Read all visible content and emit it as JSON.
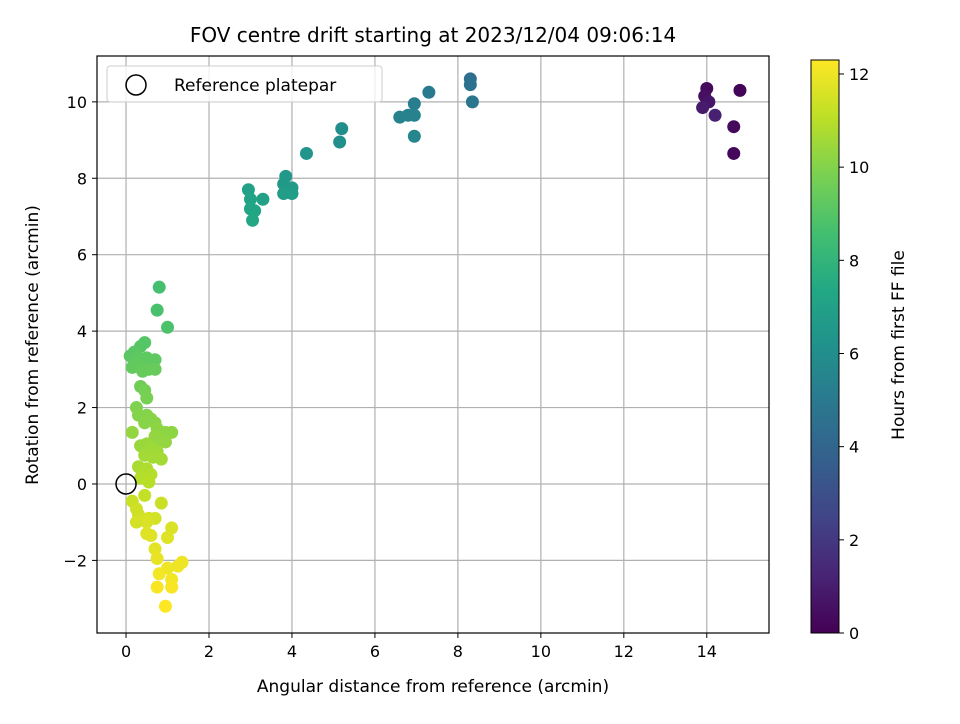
{
  "chart_data": {
    "type": "scatter",
    "title": "FOV centre drift starting at 2023/12/04 09:06:14",
    "xlabel": "Angular distance from reference (arcmin)",
    "ylabel": "Rotation from reference (arcmin)",
    "xlim": [
      -0.7,
      15.5
    ],
    "ylim": [
      -3.9,
      11.2
    ],
    "x_ticks": [
      0,
      2,
      4,
      6,
      8,
      10,
      12,
      14
    ],
    "y_ticks": [
      -2,
      0,
      2,
      4,
      6,
      8,
      10
    ],
    "grid": true,
    "legend": {
      "position": "top-left",
      "entries": [
        "Reference platepar"
      ]
    },
    "reference_point": {
      "x": 0,
      "y": 0
    },
    "colorbar": {
      "label": "Hours from first FF file",
      "min": 0,
      "max": 12.3,
      "ticks": [
        0,
        2,
        4,
        6,
        8,
        10,
        12
      ],
      "colormap": "viridis"
    },
    "series": [
      {
        "x": 14.8,
        "y": 10.3,
        "t": 0.1
      },
      {
        "x": 14.0,
        "y": 10.35,
        "t": 0.3
      },
      {
        "x": 13.95,
        "y": 10.15,
        "t": 0.5
      },
      {
        "x": 14.05,
        "y": 10.0,
        "t": 0.7
      },
      {
        "x": 13.9,
        "y": 9.85,
        "t": 0.9
      },
      {
        "x": 14.2,
        "y": 9.65,
        "t": 1.1
      },
      {
        "x": 14.65,
        "y": 9.35,
        "t": 0.3
      },
      {
        "x": 14.65,
        "y": 8.65,
        "t": 0.2
      },
      {
        "x": 8.3,
        "y": 10.6,
        "t": 4.5
      },
      {
        "x": 8.3,
        "y": 10.45,
        "t": 4.6
      },
      {
        "x": 8.35,
        "y": 10.0,
        "t": 4.8
      },
      {
        "x": 7.3,
        "y": 10.25,
        "t": 5.0
      },
      {
        "x": 6.95,
        "y": 9.95,
        "t": 5.2
      },
      {
        "x": 6.6,
        "y": 9.6,
        "t": 5.4
      },
      {
        "x": 6.8,
        "y": 9.65,
        "t": 5.3
      },
      {
        "x": 6.95,
        "y": 9.65,
        "t": 5.4
      },
      {
        "x": 6.95,
        "y": 9.1,
        "t": 5.6
      },
      {
        "x": 5.2,
        "y": 9.3,
        "t": 6.0
      },
      {
        "x": 5.15,
        "y": 8.95,
        "t": 6.1
      },
      {
        "x": 4.35,
        "y": 8.65,
        "t": 6.3
      },
      {
        "x": 3.85,
        "y": 8.05,
        "t": 6.5
      },
      {
        "x": 3.8,
        "y": 7.85,
        "t": 6.6
      },
      {
        "x": 3.9,
        "y": 7.7,
        "t": 6.7
      },
      {
        "x": 4.0,
        "y": 7.75,
        "t": 6.7
      },
      {
        "x": 3.8,
        "y": 7.6,
        "t": 6.8
      },
      {
        "x": 4.0,
        "y": 7.6,
        "t": 6.8
      },
      {
        "x": 2.95,
        "y": 7.7,
        "t": 7.0
      },
      {
        "x": 3.0,
        "y": 7.45,
        "t": 7.1
      },
      {
        "x": 3.3,
        "y": 7.45,
        "t": 7.0
      },
      {
        "x": 3.0,
        "y": 7.2,
        "t": 7.2
      },
      {
        "x": 3.1,
        "y": 7.15,
        "t": 7.2
      },
      {
        "x": 3.05,
        "y": 6.9,
        "t": 7.3
      },
      {
        "x": 0.8,
        "y": 5.15,
        "t": 8.6
      },
      {
        "x": 0.75,
        "y": 4.55,
        "t": 8.7
      },
      {
        "x": 1.0,
        "y": 4.1,
        "t": 8.8
      },
      {
        "x": 0.45,
        "y": 3.7,
        "t": 9.0
      },
      {
        "x": 0.35,
        "y": 3.6,
        "t": 9.0
      },
      {
        "x": 0.2,
        "y": 3.45,
        "t": 9.1
      },
      {
        "x": 0.1,
        "y": 3.35,
        "t": 9.1
      },
      {
        "x": 0.3,
        "y": 3.3,
        "t": 9.2
      },
      {
        "x": 0.5,
        "y": 3.3,
        "t": 9.2
      },
      {
        "x": 0.7,
        "y": 3.25,
        "t": 9.2
      },
      {
        "x": 0.2,
        "y": 3.15,
        "t": 9.3
      },
      {
        "x": 0.4,
        "y": 3.1,
        "t": 9.3
      },
      {
        "x": 0.15,
        "y": 3.05,
        "t": 9.3
      },
      {
        "x": 0.55,
        "y": 3.0,
        "t": 9.4
      },
      {
        "x": 0.7,
        "y": 3.0,
        "t": 9.4
      },
      {
        "x": 0.4,
        "y": 2.95,
        "t": 9.4
      },
      {
        "x": 0.35,
        "y": 2.55,
        "t": 9.6
      },
      {
        "x": 0.45,
        "y": 2.45,
        "t": 9.7
      },
      {
        "x": 0.5,
        "y": 2.25,
        "t": 9.8
      },
      {
        "x": 0.25,
        "y": 2.0,
        "t": 9.9
      },
      {
        "x": 0.3,
        "y": 1.8,
        "t": 10.0
      },
      {
        "x": 0.5,
        "y": 1.8,
        "t": 10.0
      },
      {
        "x": 0.6,
        "y": 1.7,
        "t": 10.1
      },
      {
        "x": 0.45,
        "y": 1.6,
        "t": 10.1
      },
      {
        "x": 0.7,
        "y": 1.6,
        "t": 10.1
      },
      {
        "x": 0.75,
        "y": 1.45,
        "t": 10.2
      },
      {
        "x": 0.15,
        "y": 1.35,
        "t": 10.3
      },
      {
        "x": 0.95,
        "y": 1.35,
        "t": 10.2
      },
      {
        "x": 1.1,
        "y": 1.35,
        "t": 10.2
      },
      {
        "x": 0.7,
        "y": 1.25,
        "t": 10.3
      },
      {
        "x": 0.8,
        "y": 1.15,
        "t": 10.3
      },
      {
        "x": 0.95,
        "y": 1.1,
        "t": 10.3
      },
      {
        "x": 0.35,
        "y": 1.0,
        "t": 10.4
      },
      {
        "x": 0.5,
        "y": 1.05,
        "t": 10.4
      },
      {
        "x": 0.6,
        "y": 0.95,
        "t": 10.5
      },
      {
        "x": 0.75,
        "y": 0.85,
        "t": 10.5
      },
      {
        "x": 0.45,
        "y": 0.75,
        "t": 10.6
      },
      {
        "x": 0.65,
        "y": 0.7,
        "t": 10.6
      },
      {
        "x": 0.85,
        "y": 0.65,
        "t": 10.6
      },
      {
        "x": 0.3,
        "y": 0.45,
        "t": 10.7
      },
      {
        "x": 0.5,
        "y": 0.4,
        "t": 10.8
      },
      {
        "x": 0.4,
        "y": 0.3,
        "t": 10.8
      },
      {
        "x": 0.6,
        "y": 0.25,
        "t": 10.9
      },
      {
        "x": 0.35,
        "y": 0.15,
        "t": 10.9
      },
      {
        "x": 0.55,
        "y": 0.05,
        "t": 11.0
      },
      {
        "x": 0.45,
        "y": -0.3,
        "t": 11.2
      },
      {
        "x": 0.85,
        "y": -0.5,
        "t": 11.3
      },
      {
        "x": 0.15,
        "y": -0.45,
        "t": 11.3
      },
      {
        "x": 0.25,
        "y": -0.65,
        "t": 11.4
      },
      {
        "x": 0.3,
        "y": -0.8,
        "t": 11.4
      },
      {
        "x": 0.55,
        "y": -0.9,
        "t": 11.5
      },
      {
        "x": 0.7,
        "y": -0.9,
        "t": 11.5
      },
      {
        "x": 0.35,
        "y": -0.95,
        "t": 11.5
      },
      {
        "x": 0.25,
        "y": -1.0,
        "t": 11.5
      },
      {
        "x": 0.5,
        "y": -1.0,
        "t": 11.6
      },
      {
        "x": 1.1,
        "y": -1.15,
        "t": 11.6
      },
      {
        "x": 0.5,
        "y": -1.3,
        "t": 11.7
      },
      {
        "x": 0.6,
        "y": -1.35,
        "t": 11.7
      },
      {
        "x": 1.0,
        "y": -1.4,
        "t": 11.7
      },
      {
        "x": 0.7,
        "y": -1.7,
        "t": 11.8
      },
      {
        "x": 0.75,
        "y": -1.95,
        "t": 11.9
      },
      {
        "x": 1.35,
        "y": -2.05,
        "t": 12.0
      },
      {
        "x": 1.25,
        "y": -2.15,
        "t": 12.0
      },
      {
        "x": 1.0,
        "y": -2.2,
        "t": 12.0
      },
      {
        "x": 0.8,
        "y": -2.35,
        "t": 12.1
      },
      {
        "x": 1.1,
        "y": -2.5,
        "t": 12.1
      },
      {
        "x": 0.75,
        "y": -2.7,
        "t": 12.2
      },
      {
        "x": 1.1,
        "y": -2.7,
        "t": 12.2
      },
      {
        "x": 0.95,
        "y": -3.2,
        "t": 12.3
      }
    ]
  }
}
